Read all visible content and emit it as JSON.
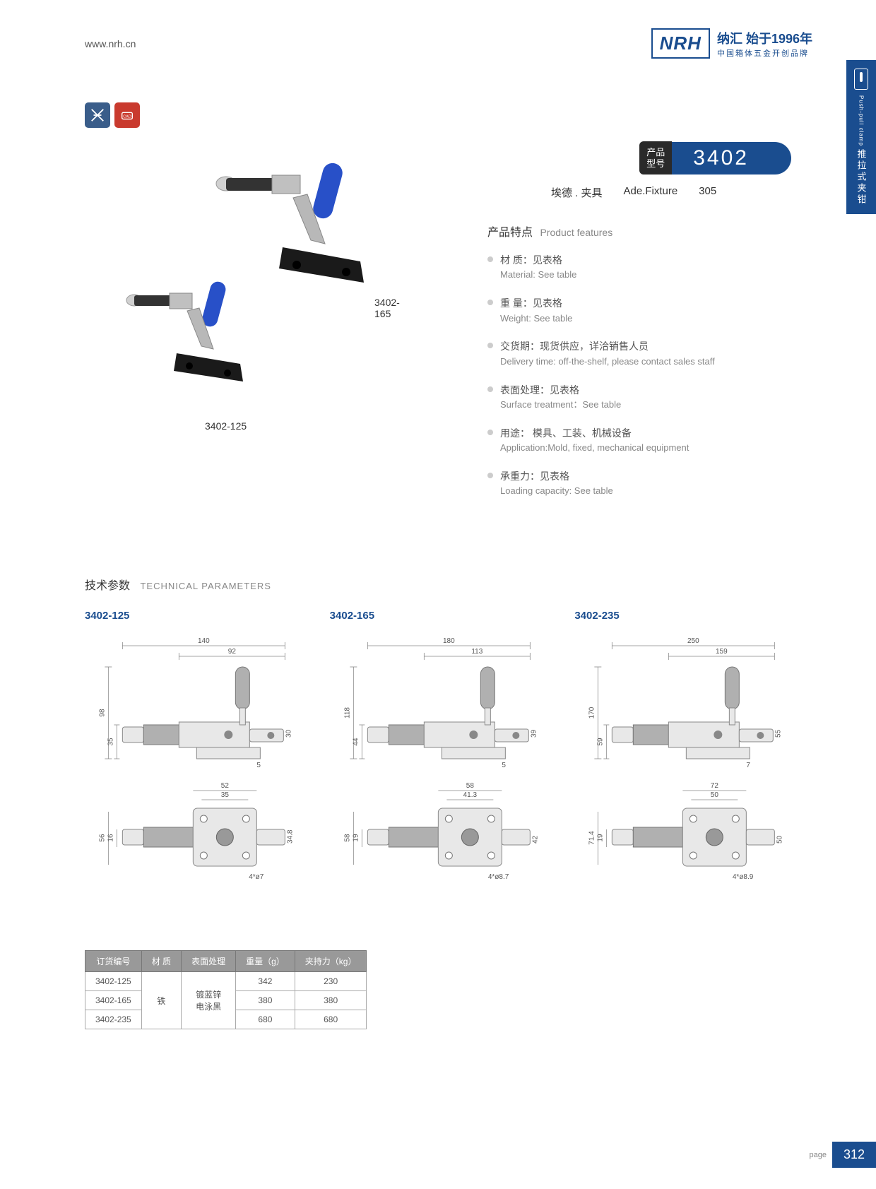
{
  "header": {
    "website": "www.nrh.cn",
    "logo": "NRH",
    "logo_cn": "纳汇 始于1996年",
    "logo_sub": "中国箱体五金开创品牌"
  },
  "side_tab": {
    "en": "Push-pull clamp",
    "cn": "推拉式夹钳"
  },
  "model": {
    "label_line1": "产品",
    "label_line2": "型号",
    "number": "3402",
    "sub_cn": "埃德 . 夹具",
    "sub_en": "Ade.Fixture",
    "sub_num": "305"
  },
  "product_labels": {
    "img1": "3402-165",
    "img2": "3402-125"
  },
  "features": {
    "title_cn": "产品特点",
    "title_en": "Product features",
    "items": [
      {
        "cn": "材 质：见表格",
        "en": "Material: See table"
      },
      {
        "cn": "重 量：见表格",
        "en": "Weight: See table"
      },
      {
        "cn": "交货期：现货供应，详洽销售人员",
        "en": "Delivery time: off-the-shelf, please contact sales staff"
      },
      {
        "cn": "表面处理：见表格",
        "en": "Surface treatment：See table"
      },
      {
        "cn": "用途： 模具、工装、机械设备",
        "en": "Application:Mold, fixed, mechanical equipment"
      },
      {
        "cn": "承重力：见表格",
        "en": "Loading capacity: See table"
      }
    ]
  },
  "tech": {
    "title_cn": "技术参数",
    "title_en": "TECHNICAL PARAMETERS",
    "models": [
      {
        "name": "3402-125",
        "dims": {
          "w": "140",
          "w2": "92",
          "h": "98",
          "h2": "35",
          "h3": "30",
          "h4": "5",
          "bw": "52",
          "bw2": "35",
          "bh": "56",
          "bh2": "16",
          "bh3": "34.8",
          "hole": "4*ø7"
        }
      },
      {
        "name": "3402-165",
        "dims": {
          "w": "180",
          "w2": "113",
          "h": "118",
          "h2": "44",
          "h3": "39",
          "h4": "5",
          "bw": "58",
          "bw2": "41.3",
          "bh": "58",
          "bh2": "19",
          "bh3": "42",
          "hole": "4*ø8.7"
        }
      },
      {
        "name": "3402-235",
        "dims": {
          "w": "250",
          "w2": "159",
          "h": "170",
          "h2": "59",
          "h3": "55",
          "h4": "7",
          "bw": "72",
          "bw2": "50",
          "bh": "71.4",
          "bh2": "19",
          "bh3": "50",
          "hole": "4*ø8.9"
        }
      }
    ]
  },
  "spec_table": {
    "headers": [
      "订货编号",
      "材 质",
      "表面处理",
      "重量（g）",
      "夹持力（kg）"
    ],
    "rows": [
      [
        "3402-125",
        "",
        "",
        "342",
        "230"
      ],
      [
        "3402-165",
        "铁",
        "镀蓝锌\n电泳黑",
        "380",
        "380"
      ],
      [
        "3402-235",
        "",
        "",
        "680",
        "680"
      ]
    ],
    "material": "铁",
    "surface": "镀蓝锌 电泳黑"
  },
  "page": {
    "label": "page",
    "number": "312"
  },
  "colors": {
    "brand": "#1a4d8f",
    "accent_red": "#c93a2e",
    "handle_blue": "#2850c8"
  }
}
